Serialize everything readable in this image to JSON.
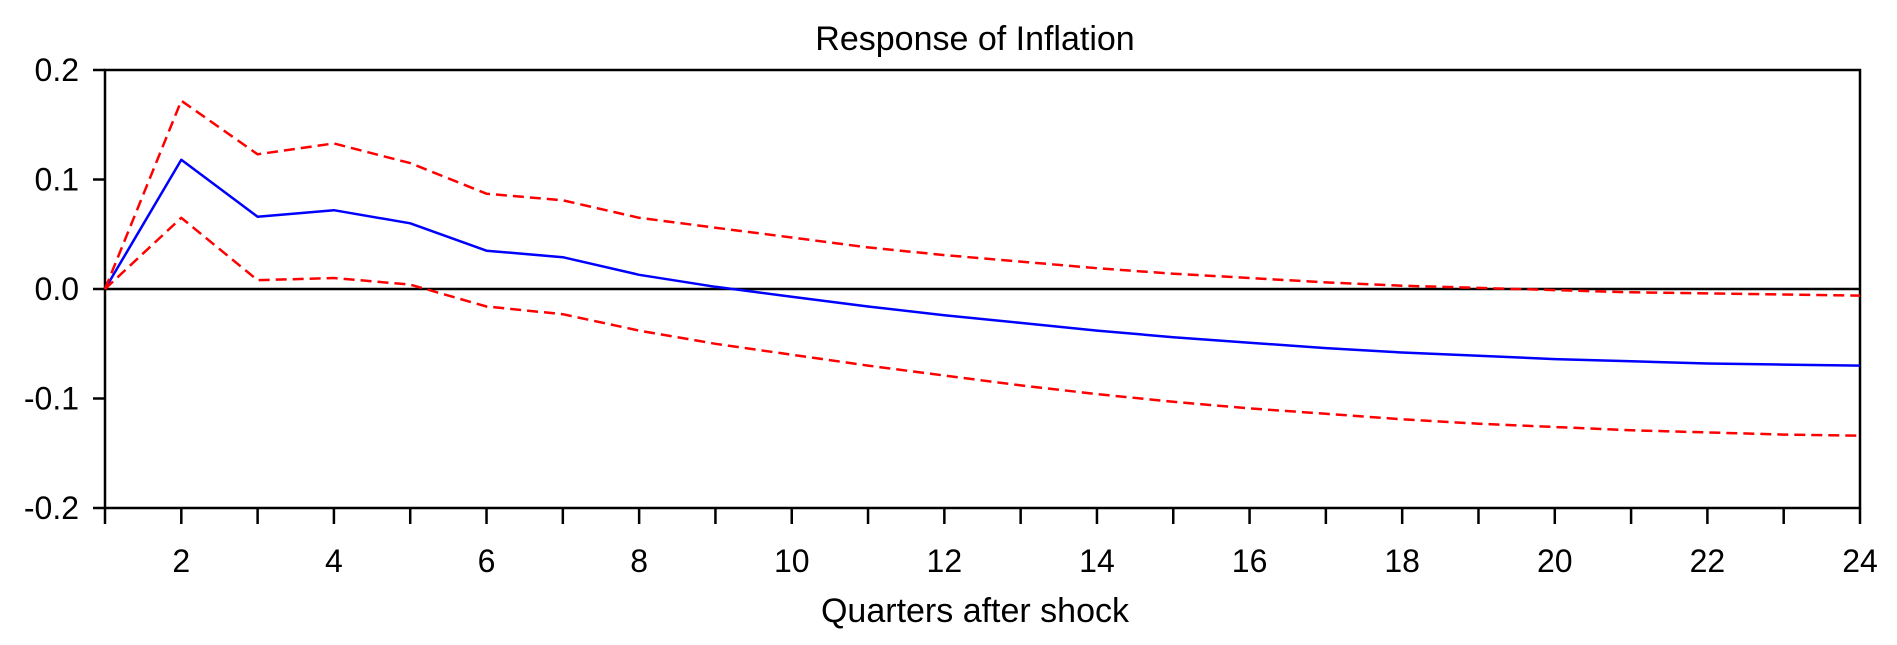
{
  "chart_data": {
    "type": "line",
    "title": "Response of Inflation",
    "xlabel": "Quarters after shock",
    "ylabel": "",
    "xlim": [
      1,
      24
    ],
    "ylim": [
      -0.2,
      0.2
    ],
    "x_ticks": [
      1,
      2,
      3,
      4,
      5,
      6,
      7,
      8,
      9,
      10,
      11,
      12,
      13,
      14,
      15,
      16,
      17,
      18,
      19,
      20,
      21,
      22,
      23,
      24
    ],
    "x_tick_labels": [
      "2",
      "4",
      "6",
      "8",
      "10",
      "12",
      "14",
      "16",
      "18",
      "20",
      "22",
      "24"
    ],
    "x_tick_label_values": [
      2,
      4,
      6,
      8,
      10,
      12,
      14,
      16,
      18,
      20,
      22,
      24
    ],
    "y_ticks": [
      -0.2,
      -0.1,
      0.0,
      0.1,
      0.2
    ],
    "y_tick_labels": [
      "-0.2",
      "-0.1",
      "0.0",
      "0.1",
      "0.2"
    ],
    "zero_line": true,
    "grid": false,
    "x": [
      1,
      2,
      3,
      4,
      5,
      6,
      7,
      8,
      9,
      10,
      11,
      12,
      13,
      14,
      15,
      16,
      17,
      18,
      19,
      20,
      21,
      22,
      23,
      24
    ],
    "series": [
      {
        "role": "response",
        "color": "#0000ff",
        "style": "solid",
        "values": [
          0.0,
          0.118,
          0.066,
          0.072,
          0.06,
          0.035,
          0.029,
          0.013,
          0.002,
          -0.007,
          -0.016,
          -0.024,
          -0.031,
          -0.038,
          -0.044,
          -0.049,
          -0.054,
          -0.058,
          -0.061,
          -0.064,
          -0.066,
          -0.068,
          -0.069,
          -0.07
        ]
      },
      {
        "role": "upper-band",
        "color": "#ff0000",
        "style": "dashed",
        "values": [
          0.0,
          0.172,
          0.123,
          0.133,
          0.115,
          0.087,
          0.081,
          0.065,
          0.056,
          0.047,
          0.038,
          0.031,
          0.025,
          0.019,
          0.014,
          0.01,
          0.006,
          0.003,
          0.001,
          -0.001,
          -0.003,
          -0.004,
          -0.005,
          -0.006
        ]
      },
      {
        "role": "lower-band",
        "color": "#ff0000",
        "style": "dashed",
        "values": [
          0.0,
          0.065,
          0.008,
          0.01,
          0.004,
          -0.016,
          -0.023,
          -0.038,
          -0.05,
          -0.06,
          -0.07,
          -0.079,
          -0.088,
          -0.096,
          -0.103,
          -0.109,
          -0.114,
          -0.119,
          -0.123,
          -0.126,
          -0.129,
          -0.131,
          -0.133,
          -0.134
        ]
      }
    ]
  }
}
